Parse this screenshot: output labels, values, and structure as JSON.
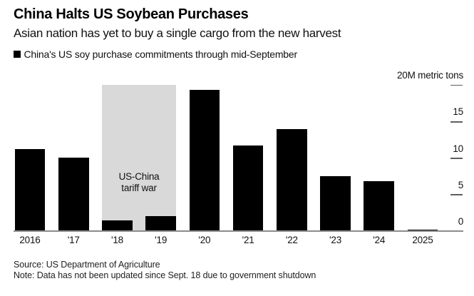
{
  "header": {
    "title": "China Halts US Soybean Purchases",
    "subtitle": "Asian nation has yet to buy a single cargo from the new harvest",
    "legend": {
      "swatch_color": "#000000",
      "label": "China's US soy purchase commitments through mid-September"
    }
  },
  "chart_data": {
    "type": "bar",
    "title": "China Halts US Soybean Purchases",
    "subtitle": "Asian nation has yet to buy a single cargo from the new harvest",
    "series_label": "China's US soy purchase commitments through mid-September",
    "unit": "M metric tons",
    "categories": [
      "2016",
      "'17",
      "'18",
      "'19",
      "'20",
      "'21",
      "'22",
      "'23",
      "'24",
      "2025"
    ],
    "values": [
      11.2,
      10.0,
      1.4,
      2.0,
      19.3,
      11.7,
      13.9,
      7.5,
      6.8,
      0.1
    ],
    "ylim": [
      0,
      20
    ],
    "yticks": [
      {
        "value": 20,
        "label": "20M metric tons",
        "dash": true
      },
      {
        "value": 15,
        "label": "15",
        "dash": true
      },
      {
        "value": 10,
        "label": "10",
        "dash": true
      },
      {
        "value": 5,
        "label": "5",
        "dash": true
      },
      {
        "value": 0,
        "label": "0",
        "dash": false
      }
    ],
    "grid": false,
    "axis_side": "right",
    "legend_position": "top-left",
    "bar_color": "#000000",
    "annotation": {
      "text_lines": [
        "US-China",
        "tariff war"
      ],
      "highlight_categories": [
        "'18",
        "'19"
      ],
      "highlight_indices": [
        2,
        3
      ],
      "band_color": "#d9d9d9"
    }
  },
  "footer": {
    "source": "Source: US Department of Agriculture",
    "note": "Note: Data has not been updated since Sept. 18 due to government shutdown"
  }
}
